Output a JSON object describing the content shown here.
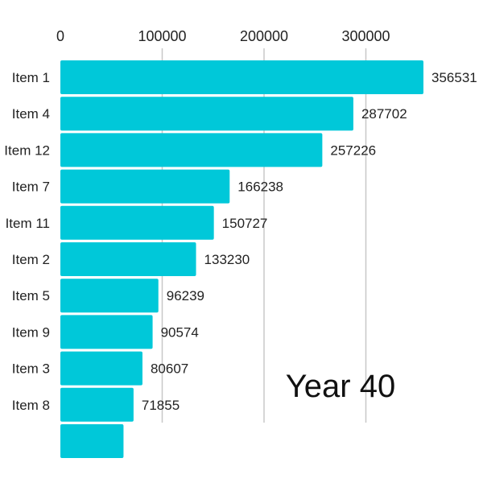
{
  "chart_data": {
    "type": "bar",
    "orientation": "horizontal",
    "bar_color": "#00c8d9",
    "grid_color": "#c8c8c8",
    "grid": true,
    "xlim": [
      0,
      360000
    ],
    "x_ticks": [
      0,
      100000,
      200000,
      300000
    ],
    "x_tick_labels": [
      "0",
      "100000",
      "200000",
      "300000"
    ],
    "categories": [
      "Item 1",
      "Item 4",
      "Item 12",
      "Item 7",
      "Item 11",
      "Item 2",
      "Item 5",
      "Item 9",
      "Item 3",
      "Item 8",
      ""
    ],
    "values": [
      356531,
      287702,
      257226,
      166238,
      150727,
      133230,
      96239,
      90574,
      80607,
      71855,
      62000
    ],
    "value_labels": [
      "356531",
      "287702",
      "257226",
      "166238",
      "150727",
      "133230",
      "96239",
      "90574",
      "80607",
      "71855",
      ""
    ],
    "annotation": "Year 40"
  }
}
